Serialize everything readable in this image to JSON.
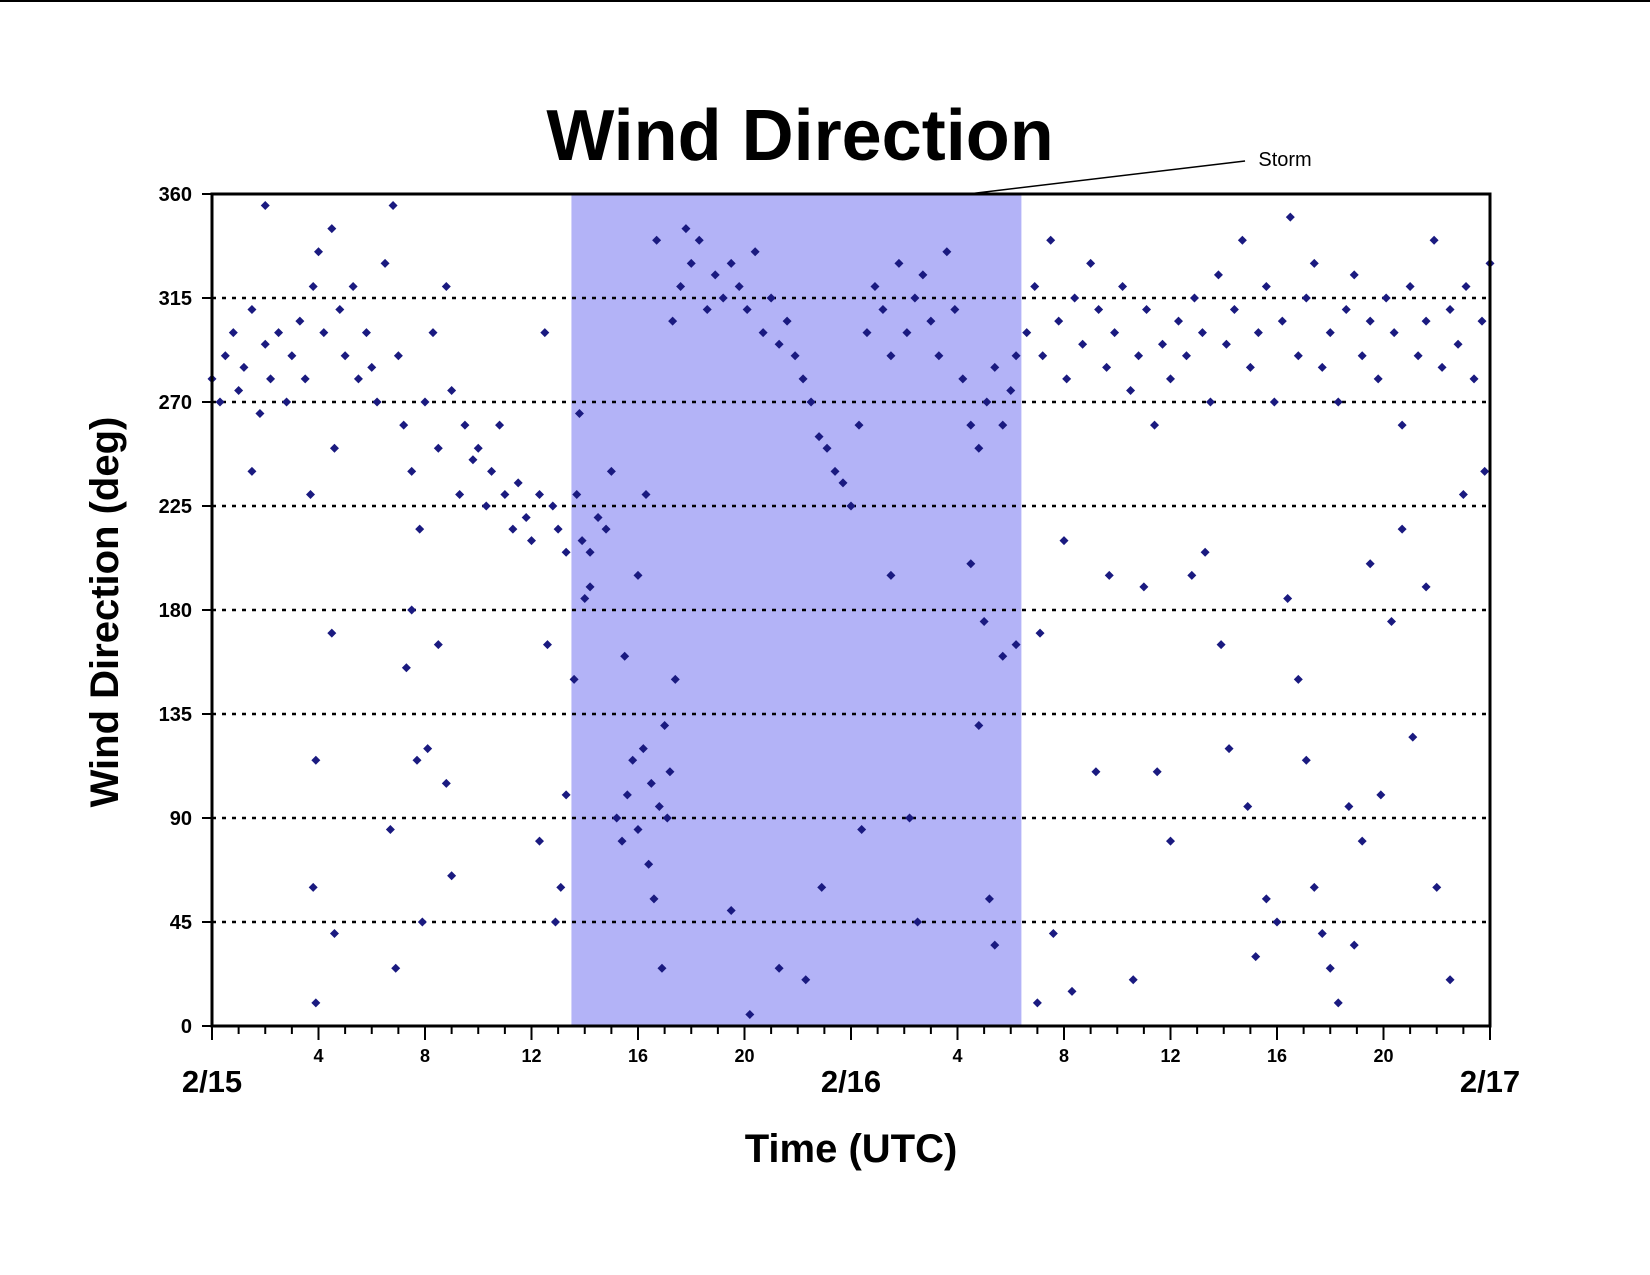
{
  "chart_data": {
    "type": "scatter",
    "title": "Wind Direction",
    "xlabel": "Time (UTC)",
    "ylabel": "Wind Direction (deg)",
    "xlim": [
      0,
      48
    ],
    "ylim": [
      0,
      360
    ],
    "y_ticks": [
      "0",
      "45",
      "90",
      "135",
      "180",
      "225",
      "270",
      "315",
      "360"
    ],
    "x_minor_ticks": [
      {
        "x": 4,
        "label": "4"
      },
      {
        "x": 8,
        "label": "8"
      },
      {
        "x": 12,
        "label": "12"
      },
      {
        "x": 16,
        "label": "16"
      },
      {
        "x": 20,
        "label": "20"
      },
      {
        "x": 28,
        "label": "4"
      },
      {
        "x": 32,
        "label": "8"
      },
      {
        "x": 36,
        "label": "12"
      },
      {
        "x": 40,
        "label": "16"
      },
      {
        "x": 44,
        "label": "20"
      }
    ],
    "x_major_ticks": [
      {
        "x": 0,
        "label": "2/15"
      },
      {
        "x": 24,
        "label": "2/16"
      },
      {
        "x": 48,
        "label": "2/17"
      }
    ],
    "grid": "horizontal-dotted",
    "storm_period": {
      "start": 13.5,
      "end": 30.4,
      "label": "Storm"
    },
    "colors": {
      "points": "#1a1a80",
      "storm": "#b3b3f7",
      "axis": "#000000"
    },
    "series": [
      {
        "values": [
          [
            0,
            280
          ],
          [
            0.3,
            270
          ],
          [
            0.5,
            290
          ],
          [
            0.8,
            300
          ],
          [
            1.0,
            275
          ],
          [
            1.2,
            285
          ],
          [
            1.5,
            310
          ],
          [
            1.8,
            265
          ],
          [
            2.0,
            295
          ],
          [
            2.2,
            280
          ],
          [
            2.5,
            300
          ],
          [
            2.8,
            270
          ],
          [
            3.0,
            290
          ],
          [
            3.3,
            305
          ],
          [
            3.5,
            280
          ],
          [
            3.8,
            320
          ],
          [
            4.0,
            335
          ],
          [
            4.2,
            300
          ],
          [
            4.5,
            345
          ],
          [
            4.8,
            310
          ],
          [
            5.0,
            290
          ],
          [
            5.3,
            320
          ],
          [
            5.5,
            280
          ],
          [
            5.8,
            300
          ],
          [
            6.0,
            285
          ],
          [
            6.2,
            270
          ],
          [
            6.5,
            330
          ],
          [
            6.8,
            355
          ],
          [
            7.0,
            290
          ],
          [
            7.2,
            260
          ],
          [
            7.5,
            240
          ],
          [
            7.8,
            215
          ],
          [
            8.0,
            270
          ],
          [
            8.3,
            300
          ],
          [
            8.5,
            250
          ],
          [
            8.8,
            320
          ],
          [
            9.0,
            275
          ],
          [
            9.3,
            230
          ],
          [
            9.5,
            260
          ],
          [
            9.8,
            245
          ],
          [
            10.0,
            250
          ],
          [
            10.3,
            225
          ],
          [
            10.5,
            240
          ],
          [
            10.8,
            260
          ],
          [
            11.0,
            230
          ],
          [
            11.3,
            215
          ],
          [
            11.5,
            235
          ],
          [
            11.8,
            220
          ],
          [
            12.0,
            210
          ],
          [
            12.3,
            230
          ],
          [
            12.5,
            300
          ],
          [
            12.8,
            225
          ],
          [
            13.0,
            215
          ],
          [
            13.3,
            205
          ],
          [
            1.5,
            240
          ],
          [
            2.0,
            355
          ],
          [
            3.7,
            230
          ],
          [
            4.6,
            250
          ],
          [
            6.7,
            85
          ],
          [
            6.9,
            25
          ],
          [
            7.3,
            155
          ],
          [
            7.5,
            180
          ],
          [
            7.7,
            115
          ],
          [
            7.9,
            45
          ],
          [
            8.1,
            120
          ],
          [
            8.5,
            165
          ],
          [
            8.8,
            105
          ],
          [
            9.0,
            65
          ],
          [
            3.8,
            60
          ],
          [
            3.9,
            10
          ],
          [
            4.6,
            40
          ],
          [
            4.5,
            170
          ],
          [
            3.9,
            115
          ],
          [
            12.3,
            80
          ],
          [
            12.6,
            165
          ],
          [
            12.9,
            45
          ],
          [
            13.1,
            60
          ],
          [
            13.3,
            100
          ],
          [
            13.7,
            230
          ],
          [
            13.9,
            210
          ],
          [
            14.2,
            205
          ],
          [
            14.5,
            220
          ],
          [
            14.8,
            215
          ],
          [
            15.0,
            240
          ],
          [
            14.2,
            190
          ],
          [
            14.0,
            185
          ],
          [
            13.8,
            265
          ],
          [
            13.6,
            150
          ],
          [
            15.2,
            90
          ],
          [
            15.4,
            80
          ],
          [
            15.6,
            100
          ],
          [
            15.8,
            115
          ],
          [
            16.0,
            85
          ],
          [
            16.2,
            120
          ],
          [
            16.5,
            105
          ],
          [
            16.8,
            95
          ],
          [
            17.0,
            130
          ],
          [
            17.2,
            110
          ],
          [
            17.4,
            150
          ],
          [
            16.4,
            70
          ],
          [
            16.6,
            55
          ],
          [
            16.9,
            25
          ],
          [
            17.1,
            90
          ],
          [
            15.5,
            160
          ],
          [
            16.0,
            195
          ],
          [
            16.3,
            230
          ],
          [
            16.7,
            340
          ],
          [
            17.3,
            305
          ],
          [
            17.6,
            320
          ],
          [
            17.8,
            345
          ],
          [
            18.0,
            330
          ],
          [
            18.3,
            340
          ],
          [
            18.6,
            310
          ],
          [
            18.9,
            325
          ],
          [
            19.2,
            315
          ],
          [
            19.5,
            330
          ],
          [
            19.8,
            320
          ],
          [
            20.1,
            310
          ],
          [
            20.4,
            335
          ],
          [
            20.7,
            300
          ],
          [
            21.0,
            315
          ],
          [
            21.3,
            295
          ],
          [
            21.6,
            305
          ],
          [
            21.9,
            290
          ],
          [
            22.2,
            280
          ],
          [
            22.5,
            270
          ],
          [
            22.8,
            255
          ],
          [
            23.1,
            250
          ],
          [
            23.4,
            240
          ],
          [
            23.7,
            235
          ],
          [
            24.0,
            225
          ],
          [
            24.3,
            260
          ],
          [
            24.6,
            300
          ],
          [
            24.9,
            320
          ],
          [
            25.2,
            310
          ],
          [
            25.5,
            290
          ],
          [
            25.8,
            330
          ],
          [
            26.1,
            300
          ],
          [
            26.4,
            315
          ],
          [
            26.7,
            325
          ],
          [
            27.0,
            305
          ],
          [
            27.3,
            290
          ],
          [
            27.6,
            335
          ],
          [
            27.9,
            310
          ],
          [
            28.2,
            280
          ],
          [
            28.5,
            260
          ],
          [
            28.8,
            250
          ],
          [
            29.1,
            270
          ],
          [
            29.4,
            285
          ],
          [
            29.7,
            260
          ],
          [
            30.0,
            275
          ],
          [
            30.2,
            290
          ],
          [
            19.5,
            50
          ],
          [
            20.2,
            5
          ],
          [
            21.3,
            25
          ],
          [
            22.3,
            20
          ],
          [
            22.9,
            60
          ],
          [
            24.4,
            85
          ],
          [
            25.5,
            195
          ],
          [
            26.2,
            90
          ],
          [
            26.5,
            45
          ],
          [
            28.5,
            200
          ],
          [
            28.8,
            130
          ],
          [
            29.0,
            175
          ],
          [
            29.2,
            55
          ],
          [
            29.4,
            35
          ],
          [
            29.7,
            160
          ],
          [
            30.2,
            165
          ],
          [
            30.6,
            300
          ],
          [
            30.9,
            320
          ],
          [
            31.2,
            290
          ],
          [
            31.5,
            340
          ],
          [
            31.8,
            305
          ],
          [
            32.1,
            280
          ],
          [
            32.4,
            315
          ],
          [
            32.7,
            295
          ],
          [
            33.0,
            330
          ],
          [
            33.3,
            310
          ],
          [
            33.6,
            285
          ],
          [
            33.9,
            300
          ],
          [
            34.2,
            320
          ],
          [
            34.5,
            275
          ],
          [
            34.8,
            290
          ],
          [
            35.1,
            310
          ],
          [
            35.4,
            260
          ],
          [
            35.7,
            295
          ],
          [
            36.0,
            280
          ],
          [
            36.3,
            305
          ],
          [
            36.6,
            290
          ],
          [
            36.9,
            315
          ],
          [
            37.2,
            300
          ],
          [
            37.5,
            270
          ],
          [
            37.8,
            325
          ],
          [
            38.1,
            295
          ],
          [
            38.4,
            310
          ],
          [
            38.7,
            340
          ],
          [
            39.0,
            285
          ],
          [
            39.3,
            300
          ],
          [
            39.6,
            320
          ],
          [
            39.9,
            270
          ],
          [
            40.2,
            305
          ],
          [
            40.5,
            350
          ],
          [
            40.8,
            290
          ],
          [
            41.1,
            315
          ],
          [
            41.4,
            330
          ],
          [
            41.7,
            285
          ],
          [
            42.0,
            300
          ],
          [
            42.3,
            270
          ],
          [
            42.6,
            310
          ],
          [
            42.9,
            325
          ],
          [
            43.2,
            290
          ],
          [
            43.5,
            305
          ],
          [
            43.8,
            280
          ],
          [
            44.1,
            315
          ],
          [
            44.4,
            300
          ],
          [
            44.7,
            260
          ],
          [
            45.0,
            320
          ],
          [
            45.3,
            290
          ],
          [
            45.6,
            305
          ],
          [
            45.9,
            340
          ],
          [
            46.2,
            285
          ],
          [
            46.5,
            310
          ],
          [
            46.8,
            295
          ],
          [
            47.1,
            320
          ],
          [
            47.4,
            280
          ],
          [
            47.7,
            305
          ],
          [
            48.0,
            330
          ],
          [
            47.8,
            240
          ],
          [
            31.1,
            170
          ],
          [
            31.6,
            40
          ],
          [
            32.3,
            15
          ],
          [
            33.7,
            195
          ],
          [
            34.6,
            20
          ],
          [
            35.0,
            190
          ],
          [
            36.8,
            195
          ],
          [
            37.3,
            205
          ],
          [
            37.9,
            165
          ],
          [
            38.2,
            120
          ],
          [
            38.9,
            95
          ],
          [
            39.2,
            30
          ],
          [
            39.6,
            55
          ],
          [
            40.0,
            45
          ],
          [
            40.4,
            185
          ],
          [
            40.8,
            150
          ],
          [
            41.1,
            115
          ],
          [
            41.4,
            60
          ],
          [
            41.7,
            40
          ],
          [
            42.0,
            25
          ],
          [
            42.3,
            10
          ],
          [
            42.7,
            95
          ],
          [
            42.9,
            35
          ],
          [
            43.2,
            80
          ],
          [
            43.5,
            200
          ],
          [
            43.9,
            100
          ],
          [
            44.3,
            175
          ],
          [
            44.7,
            215
          ],
          [
            45.1,
            125
          ],
          [
            45.6,
            190
          ],
          [
            46.0,
            60
          ],
          [
            46.5,
            20
          ],
          [
            47.0,
            230
          ],
          [
            35.5,
            110
          ],
          [
            36.0,
            80
          ],
          [
            33.2,
            110
          ],
          [
            32.0,
            210
          ],
          [
            31.0,
            10
          ]
        ]
      }
    ]
  }
}
